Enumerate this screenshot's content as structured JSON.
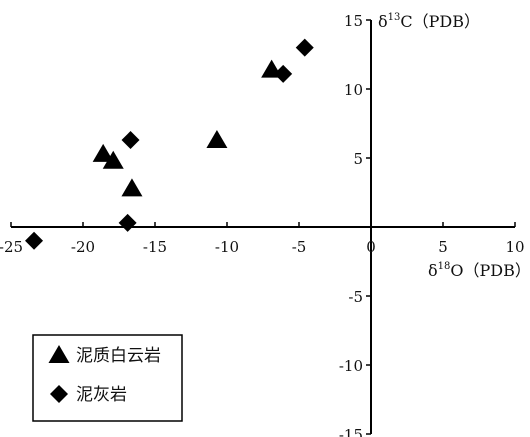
{
  "chart_data": {
    "type": "scatter",
    "xlim": [
      -25,
      10
    ],
    "ylim": [
      -15,
      15
    ],
    "x_ticks": [
      -25,
      -20,
      -15,
      -10,
      -5,
      0,
      5,
      10
    ],
    "y_ticks": [
      -15,
      -10,
      -5,
      5,
      10,
      15
    ],
    "x_tick_labels": [
      "-25",
      "-20",
      "-15",
      "-10",
      "-5",
      "0",
      "5",
      "10"
    ],
    "y_tick_labels": [
      "-15",
      "-10",
      "-5",
      "5",
      "10",
      "15"
    ],
    "xlabel": {
      "delta": "δ",
      "sup": "18",
      "text": "O（PDB）"
    },
    "ylabel": {
      "delta": "δ",
      "sup": "13",
      "text": "C（PDB）"
    },
    "legend_position": "bottom-left",
    "series": [
      {
        "name": "泥质白云岩",
        "marker": "triangle",
        "color": "#000000",
        "points": [
          {
            "x": -18.6,
            "y": 5.3
          },
          {
            "x": -17.9,
            "y": 4.8
          },
          {
            "x": -16.6,
            "y": 2.8
          },
          {
            "x": -10.7,
            "y": 6.3
          },
          {
            "x": -6.9,
            "y": 11.4
          }
        ]
      },
      {
        "name": "泥灰岩",
        "marker": "diamond",
        "color": "#000000",
        "points": [
          {
            "x": -23.4,
            "y": -1.0
          },
          {
            "x": -16.7,
            "y": 6.3
          },
          {
            "x": -16.9,
            "y": 0.3
          },
          {
            "x": -6.1,
            "y": 11.1
          },
          {
            "x": -4.6,
            "y": 13.0
          }
        ]
      }
    ]
  }
}
